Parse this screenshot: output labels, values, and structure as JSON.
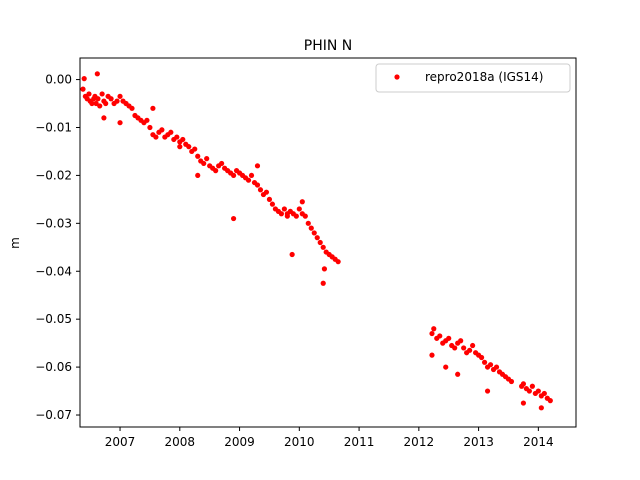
{
  "chart_data": {
    "type": "scatter",
    "title": "PHIN N",
    "xlabel": "",
    "ylabel": "m",
    "xlim": [
      2006.33,
      2014.63
    ],
    "ylim": [
      -0.0725,
      0.0045
    ],
    "x_ticks": [
      {
        "value": 2007,
        "label": "2007"
      },
      {
        "value": 2008,
        "label": "2008"
      },
      {
        "value": 2009,
        "label": "2009"
      },
      {
        "value": 2010,
        "label": "2010"
      },
      {
        "value": 2011,
        "label": "2011"
      },
      {
        "value": 2012,
        "label": "2012"
      },
      {
        "value": 2013,
        "label": "2013"
      },
      {
        "value": 2014,
        "label": "2014"
      }
    ],
    "y_ticks": [
      {
        "value": 0.0,
        "label": "0.00"
      },
      {
        "value": -0.01,
        "label": "−0.01"
      },
      {
        "value": -0.02,
        "label": "−0.02"
      },
      {
        "value": -0.03,
        "label": "−0.03"
      },
      {
        "value": -0.04,
        "label": "−0.04"
      },
      {
        "value": -0.05,
        "label": "−0.05"
      },
      {
        "value": -0.06,
        "label": "−0.06"
      },
      {
        "value": -0.07,
        "label": "−0.07"
      }
    ],
    "grid": false,
    "legend": {
      "position": "top-right",
      "entries": [
        "repro2018a (IGS14)"
      ]
    },
    "series": [
      {
        "name": "repro2018a (IGS14)",
        "color": "#ff0000",
        "marker": "circle",
        "x": [
          2006.38,
          2006.4,
          2006.42,
          2006.45,
          2006.48,
          2006.5,
          2006.53,
          2006.56,
          2006.58,
          2006.6,
          2006.63,
          2006.66,
          2006.7,
          2006.73,
          2006.76,
          2006.8,
          2006.85,
          2006.9,
          2006.95,
          2007.0,
          2007.05,
          2007.1,
          2007.15,
          2007.2,
          2007.25,
          2007.3,
          2007.35,
          2007.4,
          2007.45,
          2007.5,
          2007.55,
          2007.6,
          2007.65,
          2007.7,
          2007.75,
          2007.8,
          2007.85,
          2007.9,
          2007.95,
          2008.0,
          2008.05,
          2008.1,
          2008.15,
          2008.2,
          2008.25,
          2008.3,
          2008.35,
          2008.4,
          2008.45,
          2008.5,
          2008.55,
          2008.6,
          2008.65,
          2008.7,
          2008.75,
          2008.8,
          2008.85,
          2008.9,
          2008.95,
          2009.0,
          2009.05,
          2009.1,
          2009.15,
          2009.2,
          2009.25,
          2009.3,
          2009.35,
          2009.4,
          2009.45,
          2009.5,
          2009.55,
          2009.6,
          2009.65,
          2009.7,
          2009.75,
          2009.8,
          2009.85,
          2009.9,
          2009.95,
          2010.0,
          2010.05,
          2010.1,
          2010.15,
          2010.2,
          2010.25,
          2010.3,
          2010.35,
          2010.4,
          2010.45,
          2010.5,
          2010.55,
          2010.6,
          2010.65,
          2012.22,
          2012.25,
          2012.3,
          2012.35,
          2012.4,
          2012.45,
          2012.5,
          2012.55,
          2012.6,
          2012.65,
          2012.7,
          2012.75,
          2012.8,
          2012.85,
          2012.9,
          2012.95,
          2013.0,
          2013.05,
          2013.1,
          2013.15,
          2013.2,
          2013.25,
          2013.3,
          2013.35,
          2013.4,
          2013.45,
          2013.5,
          2013.55,
          2013.72,
          2013.75,
          2013.8,
          2013.85,
          2013.9,
          2013.95,
          2014.0,
          2014.05,
          2014.1,
          2014.15,
          2014.2,
          2006.62,
          2006.73,
          2007.0,
          2007.55,
          2008.0,
          2008.3,
          2008.9,
          2009.3,
          2009.8,
          2009.88,
          2010.05,
          2010.4,
          2010.42,
          2012.22,
          2012.45,
          2012.65,
          2013.15,
          2013.75,
          2014.05
        ],
        "y": [
          -0.002,
          0.0002,
          -0.0035,
          -0.004,
          -0.003,
          -0.0045,
          -0.005,
          -0.004,
          -0.0035,
          -0.005,
          -0.004,
          -0.0055,
          -0.003,
          -0.0045,
          -0.005,
          -0.0035,
          -0.004,
          -0.005,
          -0.0045,
          -0.0035,
          -0.0045,
          -0.005,
          -0.0055,
          -0.006,
          -0.0075,
          -0.008,
          -0.0085,
          -0.009,
          -0.0085,
          -0.01,
          -0.0115,
          -0.012,
          -0.011,
          -0.0105,
          -0.012,
          -0.0115,
          -0.011,
          -0.0125,
          -0.012,
          -0.013,
          -0.0125,
          -0.0135,
          -0.014,
          -0.015,
          -0.0145,
          -0.016,
          -0.017,
          -0.0175,
          -0.0165,
          -0.018,
          -0.0185,
          -0.019,
          -0.018,
          -0.0175,
          -0.0185,
          -0.019,
          -0.0195,
          -0.02,
          -0.019,
          -0.0195,
          -0.02,
          -0.0205,
          -0.021,
          -0.02,
          -0.0215,
          -0.022,
          -0.023,
          -0.024,
          -0.0235,
          -0.025,
          -0.026,
          -0.027,
          -0.0275,
          -0.028,
          -0.027,
          -0.0285,
          -0.0275,
          -0.028,
          -0.0285,
          -0.027,
          -0.028,
          -0.0285,
          -0.03,
          -0.031,
          -0.032,
          -0.033,
          -0.034,
          -0.035,
          -0.036,
          -0.0365,
          -0.037,
          -0.0375,
          -0.038,
          -0.053,
          -0.052,
          -0.054,
          -0.0535,
          -0.055,
          -0.0545,
          -0.054,
          -0.0555,
          -0.056,
          -0.055,
          -0.0545,
          -0.056,
          -0.057,
          -0.0565,
          -0.0555,
          -0.057,
          -0.0575,
          -0.058,
          -0.059,
          -0.06,
          -0.0595,
          -0.0605,
          -0.06,
          -0.061,
          -0.0615,
          -0.062,
          -0.0625,
          -0.063,
          -0.064,
          -0.0635,
          -0.0645,
          -0.065,
          -0.064,
          -0.0655,
          -0.065,
          -0.066,
          -0.0655,
          -0.0665,
          -0.067,
          0.0012,
          -0.008,
          -0.009,
          -0.006,
          -0.014,
          -0.02,
          -0.029,
          -0.018,
          -0.028,
          -0.0365,
          -0.0255,
          -0.0425,
          -0.0395,
          -0.0575,
          -0.06,
          -0.0615,
          -0.065,
          -0.0675,
          -0.0685
        ]
      }
    ]
  }
}
